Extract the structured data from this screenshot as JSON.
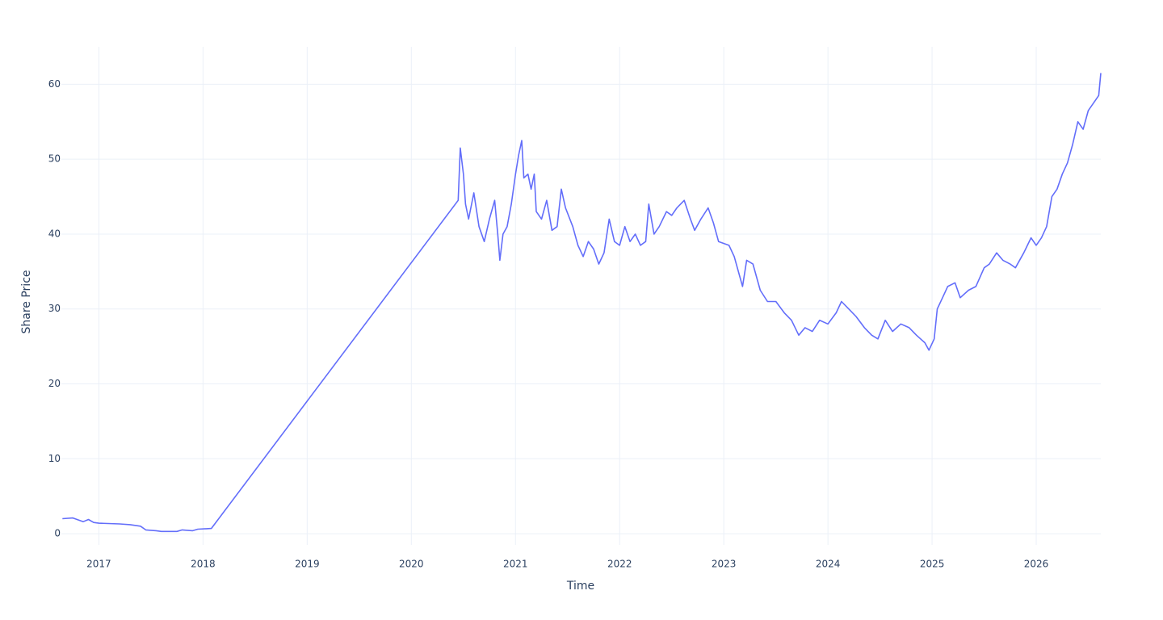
{
  "chart_data": {
    "type": "line",
    "xlabel": "Time",
    "ylabel": "Share Price",
    "x": [
      2016.65,
      2016.75,
      2016.85,
      2016.9,
      2016.95,
      2017.0,
      2017.2,
      2017.3,
      2017.4,
      2017.45,
      2017.55,
      2017.6,
      2017.75,
      2017.8,
      2017.9,
      2017.95,
      2018.08,
      2020.45,
      2020.47,
      2020.5,
      2020.52,
      2020.55,
      2020.6,
      2020.65,
      2020.7,
      2020.75,
      2020.8,
      2020.83,
      2020.85,
      2020.88,
      2020.92,
      2020.96,
      2021.0,
      2021.03,
      2021.06,
      2021.08,
      2021.12,
      2021.15,
      2021.18,
      2021.2,
      2021.25,
      2021.3,
      2021.35,
      2021.4,
      2021.44,
      2021.48,
      2021.55,
      2021.6,
      2021.65,
      2021.7,
      2021.75,
      2021.8,
      2021.85,
      2021.9,
      2021.95,
      2022.0,
      2022.05,
      2022.1,
      2022.15,
      2022.2,
      2022.25,
      2022.28,
      2022.33,
      2022.38,
      2022.45,
      2022.5,
      2022.55,
      2022.62,
      2022.68,
      2022.72,
      2022.78,
      2022.85,
      2022.9,
      2022.95,
      2023.05,
      2023.1,
      2023.18,
      2023.22,
      2023.28,
      2023.35,
      2023.42,
      2023.5,
      2023.58,
      2023.65,
      2023.72,
      2023.78,
      2023.85,
      2023.92,
      2024.0,
      2024.08,
      2024.13,
      2024.2,
      2024.27,
      2024.35,
      2024.42,
      2024.48,
      2024.55,
      2024.62,
      2024.7,
      2024.78,
      2024.85,
      2024.93,
      2024.97,
      2025.02,
      2025.05,
      2025.1,
      2025.15,
      2025.22,
      2025.27,
      2025.35,
      2025.42,
      2025.5,
      2025.55,
      2025.62,
      2025.68,
      2025.75,
      2025.8,
      2025.88,
      2025.95,
      2026.0,
      2026.05,
      2026.1,
      2026.15,
      2026.2,
      2026.25,
      2026.3,
      2026.35,
      2026.4,
      2026.45,
      2026.5,
      2026.55,
      2026.6,
      2026.62
    ],
    "values": [
      2.0,
      2.1,
      1.6,
      1.9,
      1.5,
      1.4,
      1.3,
      1.2,
      1.0,
      0.5,
      0.4,
      0.3,
      0.3,
      0.5,
      0.4,
      0.6,
      0.7,
      44.5,
      51.5,
      48,
      44,
      42,
      45.5,
      41,
      39,
      42,
      44.5,
      40,
      36.5,
      40,
      41,
      44,
      48,
      50.5,
      52.5,
      47.5,
      48,
      46,
      48,
      43,
      42,
      44.5,
      40.5,
      41,
      46,
      43.5,
      41,
      38.5,
      37,
      39,
      38,
      36,
      37.5,
      42,
      39,
      38.5,
      41,
      39,
      40,
      38.5,
      39,
      44,
      40,
      41,
      43,
      42.5,
      43.5,
      44.5,
      42,
      40.5,
      42,
      43.5,
      41.5,
      39,
      38.5,
      37,
      33,
      36.5,
      36,
      32.5,
      31,
      31,
      29.5,
      28.5,
      26.5,
      27.5,
      27,
      28.5,
      28,
      29.5,
      31,
      30,
      29,
      27.5,
      26.5,
      26,
      28.5,
      27,
      28,
      27.5,
      26.5,
      25.5,
      24.5,
      26,
      30,
      31.5,
      33,
      33.5,
      31.5,
      32.5,
      33,
      35.5,
      36,
      37.5,
      36.5,
      36,
      35.5,
      37.5,
      39.5,
      38.5,
      39.5,
      41,
      45,
      46,
      48,
      49.5,
      52,
      55,
      54,
      56.5,
      57.5,
      58.5,
      61.5
    ],
    "color": "#636efa",
    "xlim": [
      2016.64,
      2026.62
    ],
    "xticks": [
      2017,
      2018,
      2019,
      2020,
      2021,
      2022,
      2023,
      2024,
      2025,
      2026
    ],
    "ylim": [
      -1.5,
      65
    ],
    "yticks": [
      0,
      10,
      20,
      30,
      40,
      50,
      60
    ],
    "grid": true
  }
}
